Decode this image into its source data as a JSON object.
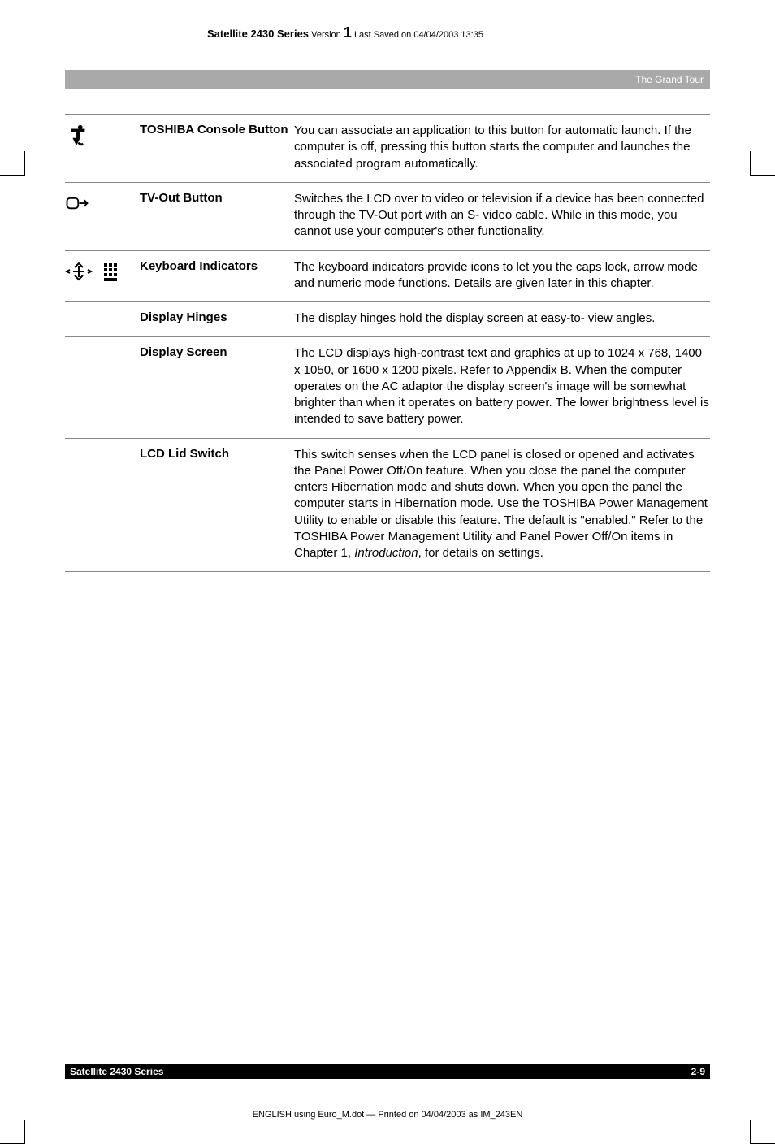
{
  "header": {
    "series": "Satellite 2430 Series",
    "version_label": "Version",
    "version_number": "1",
    "saved": "Last Saved on 04/04/2003 13:35"
  },
  "greybar": "The Grand Tour",
  "rows": [
    {
      "icon": "toshiba",
      "label": "TOSHIBA Console Button",
      "desc": "You can associate an application to this button for automatic launch. If the computer is off, pressing this button starts the computer and launches the associated program automatically."
    },
    {
      "icon": "tvout",
      "label": "TV-Out Button",
      "desc": "Switches the LCD over to video or television if a device has been connected through the TV-Out port with an S- video cable. While in this mode, you cannot use your computer's other functionality."
    },
    {
      "icon": "keyboard",
      "label": "Keyboard Indicators",
      "desc": "The keyboard indicators provide icons to let you the caps lock, arrow mode and numeric mode functions. Details are given later in this chapter."
    },
    {
      "icon": "",
      "label": "Display Hinges",
      "desc": "The display hinges hold the display screen at easy-to- view angles."
    },
    {
      "icon": "",
      "label": "Display Screen",
      "desc": "The LCD displays high-contrast text and graphics at up to 1024 x 768, 1400 x 1050, or 1600 x 1200 pixels. Refer to Appendix B. When the computer operates on the AC adaptor the display screen's image will be somewhat brighter than when it operates on battery power. The lower brightness level is intended to save battery power."
    },
    {
      "icon": "",
      "label": "LCD Lid Switch",
      "desc": "This switch senses when the LCD panel is closed or opened and activates the Panel Power Off/On feature. When you close the panel the computer enters Hibernation mode and shuts down. When you open the panel the computer starts in Hibernation mode. Use the TOSHIBA Power Management Utility to enable or disable this feature. The default is \"enabled.\" Refer to the TOSHIBA Power Management Utility and Panel Power Off/On items in Chapter 1, <i>Introduction</i>, for details on settings."
    }
  ],
  "footer": {
    "left": "Satellite 2430 Series",
    "right": "2-9"
  },
  "footer_print": "ENGLISH using Euro_M.dot — Printed on 04/04/2003 as IM_243EN",
  "colors": {
    "greybar_bg": "#a9a9a9",
    "greybar_text": "#ffffff",
    "border": "#888888",
    "footer_bg": "#000000",
    "footer_text": "#ffffff"
  }
}
